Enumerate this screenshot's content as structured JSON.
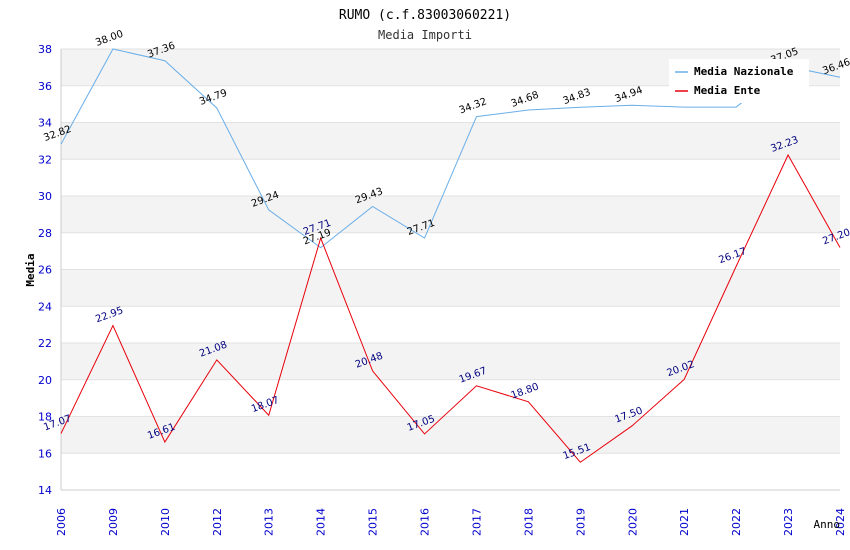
{
  "chart_data": {
    "type": "line",
    "title": "RUMO (c.f.83003060221)",
    "subtitle": "Media Importi",
    "xlabel": "Anno",
    "ylabel": "Media",
    "ylim": [
      14,
      38
    ],
    "yticks": [
      14,
      16,
      18,
      20,
      22,
      24,
      26,
      28,
      30,
      32,
      34,
      36,
      38
    ],
    "categories": [
      "2006",
      "2009",
      "2010",
      "2012",
      "2013",
      "2014",
      "2015",
      "2016",
      "2017",
      "2018",
      "2019",
      "2020",
      "2021",
      "2022",
      "2023",
      "2024"
    ],
    "legend_position": "top-right",
    "grid": true,
    "series": [
      {
        "name": "Media Nazionale",
        "color": "#6aaee8",
        "label_color": "#000000",
        "values": [
          32.82,
          38.0,
          37.36,
          34.79,
          29.24,
          27.19,
          29.43,
          27.71,
          34.32,
          34.68,
          34.83,
          34.94,
          34.84,
          34.84,
          37.05,
          36.46
        ],
        "labels": [
          "32.82",
          "38.00",
          "37.36",
          "34.79",
          "29.24",
          "27.19",
          "29.43",
          "27.71",
          "34.32",
          "34.68",
          "34.83",
          "34.94",
          "",
          "",
          "37.05",
          "36.46"
        ]
      },
      {
        "name": "Media Ente",
        "color": "#e8000b",
        "label_color": "#000080",
        "values": [
          17.07,
          22.95,
          16.61,
          21.08,
          18.07,
          27.71,
          20.48,
          17.05,
          19.67,
          18.8,
          15.51,
          17.5,
          20.02,
          26.17,
          32.23,
          27.2
        ],
        "labels": [
          "17.07",
          "22.95",
          "16.61",
          "21.08",
          "18.07",
          "27.71",
          "20.48",
          "17.05",
          "19.67",
          "18.80",
          "15.51",
          "17.50",
          "20.02",
          "26.17",
          "32.23",
          "27.20"
        ]
      }
    ]
  }
}
